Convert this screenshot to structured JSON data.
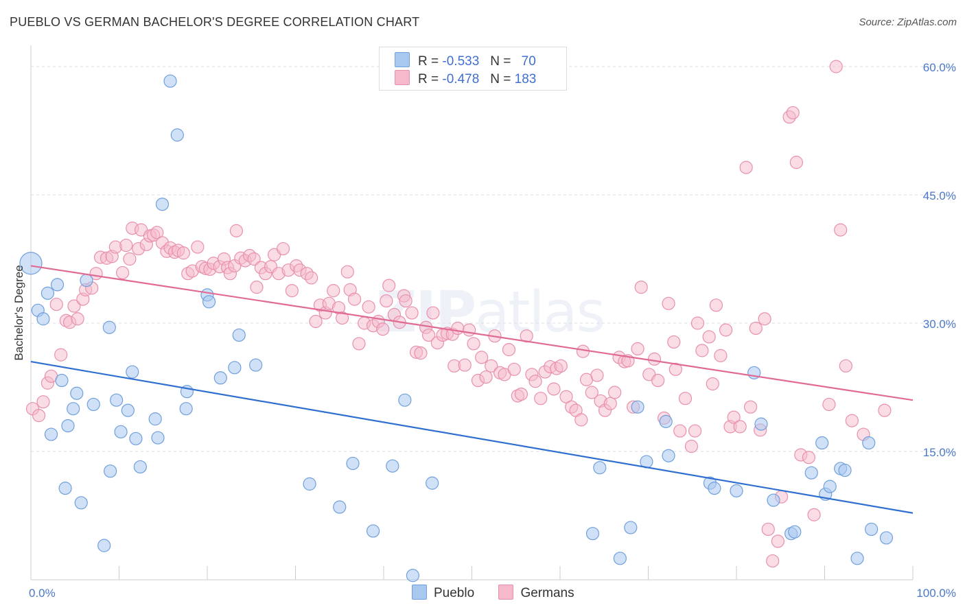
{
  "header": {
    "title": "PUEBLO VS GERMAN BACHELOR'S DEGREE CORRELATION CHART",
    "source": "Source: ZipAtlas.com"
  },
  "watermark": {
    "bold": "ZIP",
    "light": "atlas"
  },
  "legend": {
    "pueblo": {
      "r_label": "R =",
      "r_value": "-0.533",
      "n_label": "N =",
      "n_value": "70"
    },
    "germans": {
      "r_label": "R =",
      "r_value": "-0.478",
      "n_label": "N =",
      "n_value": "183"
    }
  },
  "bottom_legend": {
    "pueblo": "Pueblo",
    "germans": "Germans"
  },
  "colors": {
    "pueblo_fill": "#a9c8f0",
    "pueblo_stroke": "#6f9fdc",
    "pueblo_line": "#2f6fd0",
    "germans_fill": "#f6b9cc",
    "germans_stroke": "#e890ab",
    "germans_line": "#e06a94",
    "grid": "#dddddd",
    "tick_text": "#4a78c8"
  },
  "chart_data": {
    "type": "scatter",
    "title": "PUEBLO VS GERMAN BACHELOR'S DEGREE CORRELATION CHART",
    "xlabel": "",
    "ylabel": "Bachelor's Degree",
    "xlim": [
      0,
      100
    ],
    "ylim": [
      0,
      60
    ],
    "y_ticks": [
      15,
      30,
      45,
      60
    ],
    "y_tick_labels": [
      "15.0%",
      "30.0%",
      "45.0%",
      "60.0%"
    ],
    "x_tick_labels": [
      "0.0%",
      "100.0%"
    ],
    "grid": true,
    "legend_position": "top-center",
    "series": [
      {
        "name": "Pueblo",
        "r": -0.533,
        "n": 70,
        "trend": [
          [
            0,
            25.5
          ],
          [
            100,
            7.8
          ]
        ],
        "points": [
          [
            0.0,
            37.0
          ],
          [
            0.8,
            31.5
          ],
          [
            1.4,
            30.5
          ],
          [
            1.9,
            33.5
          ],
          [
            2.3,
            17.0
          ],
          [
            3.0,
            34.5
          ],
          [
            3.5,
            23.3
          ],
          [
            3.9,
            10.7
          ],
          [
            4.2,
            18.0
          ],
          [
            4.8,
            20.0
          ],
          [
            5.2,
            21.8
          ],
          [
            5.7,
            9.0
          ],
          [
            6.3,
            35.0
          ],
          [
            7.1,
            20.5
          ],
          [
            8.3,
            4.0
          ],
          [
            8.9,
            29.5
          ],
          [
            9.0,
            12.7
          ],
          [
            9.7,
            21.0
          ],
          [
            10.2,
            17.3
          ],
          [
            11.0,
            19.8
          ],
          [
            11.5,
            24.3
          ],
          [
            11.9,
            16.5
          ],
          [
            12.4,
            13.2
          ],
          [
            14.1,
            18.8
          ],
          [
            14.4,
            16.6
          ],
          [
            14.9,
            43.9
          ],
          [
            15.8,
            58.3
          ],
          [
            16.6,
            52.0
          ],
          [
            17.6,
            20.0
          ],
          [
            17.7,
            22.0
          ],
          [
            20.0,
            33.3
          ],
          [
            20.2,
            32.5
          ],
          [
            21.5,
            23.6
          ],
          [
            23.1,
            24.8
          ],
          [
            23.6,
            28.6
          ],
          [
            25.5,
            25.1
          ],
          [
            31.6,
            11.2
          ],
          [
            35.0,
            8.5
          ],
          [
            36.5,
            13.6
          ],
          [
            38.8,
            5.7
          ],
          [
            41.0,
            13.3
          ],
          [
            42.4,
            21.0
          ],
          [
            43.3,
            0.5
          ],
          [
            45.5,
            11.3
          ],
          [
            63.7,
            5.4
          ],
          [
            64.5,
            13.1
          ],
          [
            66.8,
            2.5
          ],
          [
            68.0,
            6.1
          ],
          [
            68.8,
            20.2
          ],
          [
            69.8,
            13.8
          ],
          [
            72.0,
            18.5
          ],
          [
            72.3,
            14.5
          ],
          [
            77.0,
            11.3
          ],
          [
            77.5,
            10.7
          ],
          [
            80.0,
            10.4
          ],
          [
            82.0,
            24.2
          ],
          [
            82.8,
            18.2
          ],
          [
            84.2,
            9.3
          ],
          [
            86.2,
            5.4
          ],
          [
            86.6,
            5.6
          ],
          [
            88.5,
            12.5
          ],
          [
            89.7,
            16.0
          ],
          [
            90.1,
            10.0
          ],
          [
            90.6,
            10.9
          ],
          [
            91.8,
            13.0
          ],
          [
            92.3,
            12.8
          ],
          [
            93.7,
            2.5
          ],
          [
            95.0,
            16.0
          ],
          [
            95.3,
            5.9
          ],
          [
            97.0,
            4.9
          ]
        ]
      },
      {
        "name": "Germans",
        "r": -0.478,
        "n": 183,
        "trend": [
          [
            0,
            36.7
          ],
          [
            100,
            21.0
          ]
        ],
        "points": [
          [
            0.2,
            20.0
          ],
          [
            0.9,
            19.2
          ],
          [
            1.4,
            20.8
          ],
          [
            1.9,
            23.0
          ],
          [
            2.3,
            23.8
          ],
          [
            2.9,
            32.2
          ],
          [
            3.4,
            26.3
          ],
          [
            4.0,
            30.3
          ],
          [
            4.4,
            30.1
          ],
          [
            4.9,
            32.0
          ],
          [
            5.3,
            30.5
          ],
          [
            5.9,
            32.8
          ],
          [
            6.2,
            33.9
          ],
          [
            6.9,
            34.1
          ],
          [
            7.4,
            35.8
          ],
          [
            7.9,
            37.7
          ],
          [
            8.6,
            37.6
          ],
          [
            9.2,
            37.8
          ],
          [
            9.6,
            38.9
          ],
          [
            10.4,
            35.9
          ],
          [
            10.8,
            39.1
          ],
          [
            11.2,
            37.5
          ],
          [
            11.5,
            41.1
          ],
          [
            12.2,
            38.7
          ],
          [
            12.5,
            40.9
          ],
          [
            13.1,
            39.2
          ],
          [
            13.5,
            40.2
          ],
          [
            13.9,
            40.3
          ],
          [
            14.3,
            40.6
          ],
          [
            14.9,
            39.4
          ],
          [
            15.4,
            38.4
          ],
          [
            15.8,
            38.8
          ],
          [
            16.3,
            38.3
          ],
          [
            16.7,
            38.5
          ],
          [
            17.3,
            38.2
          ],
          [
            17.8,
            35.8
          ],
          [
            18.3,
            36.1
          ],
          [
            18.9,
            38.9
          ],
          [
            19.4,
            36.6
          ],
          [
            19.8,
            36.4
          ],
          [
            20.3,
            36.3
          ],
          [
            20.7,
            37.0
          ],
          [
            21.4,
            36.6
          ],
          [
            21.9,
            37.5
          ],
          [
            22.3,
            36.5
          ],
          [
            22.6,
            35.8
          ],
          [
            23.1,
            36.7
          ],
          [
            23.3,
            40.8
          ],
          [
            23.8,
            37.6
          ],
          [
            24.3,
            37.3
          ],
          [
            24.8,
            37.9
          ],
          [
            25.3,
            37.5
          ],
          [
            25.6,
            34.2
          ],
          [
            26.1,
            36.5
          ],
          [
            26.6,
            35.8
          ],
          [
            27.2,
            36.6
          ],
          [
            27.6,
            38.0
          ],
          [
            28.1,
            35.8
          ],
          [
            28.6,
            38.7
          ],
          [
            29.2,
            36.2
          ],
          [
            29.6,
            33.8
          ],
          [
            30.1,
            36.7
          ],
          [
            30.5,
            36.2
          ],
          [
            31.3,
            35.8
          ],
          [
            31.8,
            35.3
          ],
          [
            32.3,
            30.2
          ],
          [
            32.8,
            32.1
          ],
          [
            33.4,
            31.2
          ],
          [
            33.8,
            32.3
          ],
          [
            34.3,
            33.8
          ],
          [
            34.9,
            31.8
          ],
          [
            35.3,
            30.6
          ],
          [
            35.9,
            36.0
          ],
          [
            36.2,
            33.9
          ],
          [
            36.7,
            32.8
          ],
          [
            37.2,
            27.6
          ],
          [
            37.8,
            30.0
          ],
          [
            38.3,
            31.9
          ],
          [
            38.8,
            29.7
          ],
          [
            39.4,
            30.2
          ],
          [
            39.9,
            29.3
          ],
          [
            40.3,
            32.6
          ],
          [
            40.6,
            34.4
          ],
          [
            41.2,
            31.0
          ],
          [
            41.8,
            30.1
          ],
          [
            42.3,
            33.2
          ],
          [
            42.5,
            32.6
          ],
          [
            43.2,
            31.2
          ],
          [
            43.7,
            26.6
          ],
          [
            44.2,
            26.5
          ],
          [
            44.8,
            29.5
          ],
          [
            45.1,
            28.6
          ],
          [
            45.6,
            31.2
          ],
          [
            46.1,
            27.7
          ],
          [
            46.7,
            28.6
          ],
          [
            47.2,
            28.8
          ],
          [
            47.8,
            28.7
          ],
          [
            48.4,
            29.4
          ],
          [
            48.0,
            25.0
          ],
          [
            49.2,
            25.1
          ],
          [
            49.7,
            29.2
          ],
          [
            50.2,
            27.6
          ],
          [
            50.7,
            23.3
          ],
          [
            51.1,
            26.0
          ],
          [
            51.6,
            23.7
          ],
          [
            52.2,
            25.0
          ],
          [
            52.6,
            28.5
          ],
          [
            53.2,
            24.2
          ],
          [
            53.7,
            24.0
          ],
          [
            54.2,
            26.9
          ],
          [
            54.8,
            24.6
          ],
          [
            55.2,
            21.5
          ],
          [
            55.6,
            21.7
          ],
          [
            56.2,
            28.5
          ],
          [
            56.8,
            24.0
          ],
          [
            57.2,
            23.2
          ],
          [
            57.8,
            21.2
          ],
          [
            58.3,
            24.3
          ],
          [
            58.9,
            24.9
          ],
          [
            59.3,
            22.3
          ],
          [
            59.6,
            24.7
          ],
          [
            60.1,
            25.0
          ],
          [
            60.7,
            21.4
          ],
          [
            61.3,
            20.2
          ],
          [
            61.8,
            19.8
          ],
          [
            62.4,
            18.7
          ],
          [
            62.6,
            26.7
          ],
          [
            63.0,
            23.4
          ],
          [
            63.6,
            21.9
          ],
          [
            64.2,
            23.9
          ],
          [
            64.6,
            20.9
          ],
          [
            65.1,
            19.8
          ],
          [
            65.7,
            20.6
          ],
          [
            66.2,
            21.9
          ],
          [
            66.7,
            26.0
          ],
          [
            67.3,
            25.5
          ],
          [
            67.7,
            25.6
          ],
          [
            68.3,
            20.2
          ],
          [
            68.8,
            27.0
          ],
          [
            69.2,
            34.2
          ],
          [
            70.1,
            24.0
          ],
          [
            70.7,
            25.8
          ],
          [
            71.1,
            23.3
          ],
          [
            71.8,
            18.9
          ],
          [
            72.3,
            32.3
          ],
          [
            72.9,
            27.8
          ],
          [
            73.1,
            24.6
          ],
          [
            73.6,
            17.4
          ],
          [
            74.2,
            21.2
          ],
          [
            74.9,
            15.6
          ],
          [
            75.3,
            17.4
          ],
          [
            75.6,
            30.0
          ],
          [
            76.1,
            26.8
          ],
          [
            76.9,
            28.4
          ],
          [
            77.3,
            22.9
          ],
          [
            77.7,
            32.1
          ],
          [
            78.2,
            26.2
          ],
          [
            78.8,
            29.2
          ],
          [
            79.3,
            17.9
          ],
          [
            79.7,
            19.0
          ],
          [
            80.4,
            17.9
          ],
          [
            81.1,
            48.2
          ],
          [
            81.6,
            20.2
          ],
          [
            82.2,
            29.4
          ],
          [
            82.7,
            17.5
          ],
          [
            83.2,
            30.5
          ],
          [
            83.6,
            5.9
          ],
          [
            84.1,
            2.2
          ],
          [
            84.7,
            4.5
          ],
          [
            85.1,
            9.7
          ],
          [
            86.0,
            54.1
          ],
          [
            86.4,
            54.6
          ],
          [
            86.8,
            48.8
          ],
          [
            87.3,
            14.6
          ],
          [
            88.2,
            14.3
          ],
          [
            88.8,
            7.6
          ],
          [
            90.5,
            20.5
          ],
          [
            91.3,
            60.0
          ],
          [
            91.8,
            40.9
          ],
          [
            92.4,
            25.0
          ],
          [
            93.1,
            18.6
          ],
          [
            94.4,
            17.0
          ],
          [
            96.8,
            19.8
          ]
        ]
      }
    ]
  }
}
